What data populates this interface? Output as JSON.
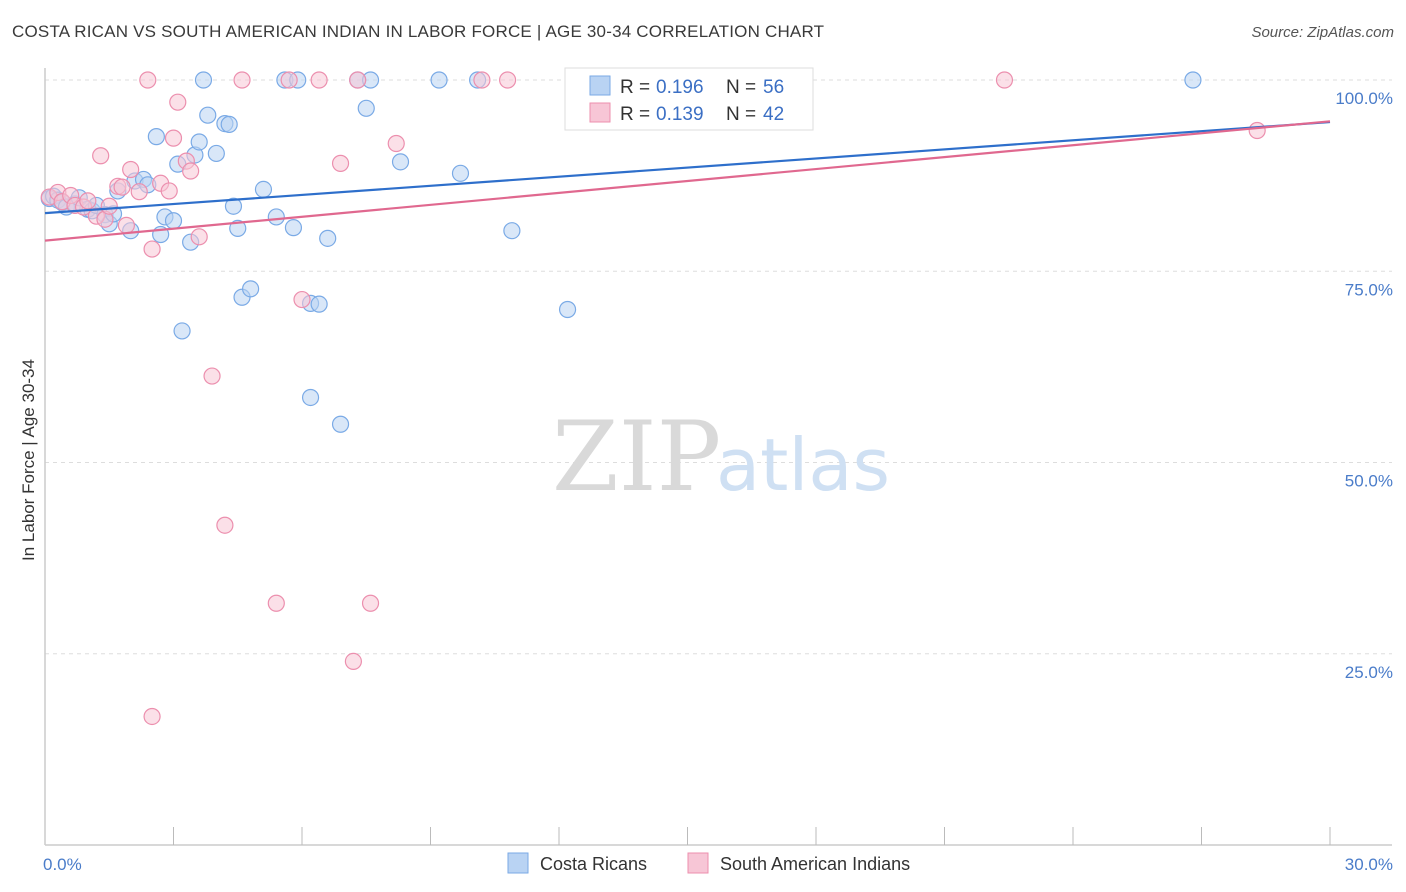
{
  "title": "COSTA RICAN VS SOUTH AMERICAN INDIAN IN LABOR FORCE | AGE 30-34 CORRELATION CHART",
  "source": "Source: ZipAtlas.com",
  "watermark": {
    "part1": "ZIP",
    "part2": "atlas"
  },
  "colors": {
    "blue": "#7aaae6",
    "blue_fill": "#b9d3f3",
    "blue_line": "#2e6fcb",
    "pink": "#ec8fae",
    "pink_fill": "#f7c6d6",
    "pink_line": "#e0688f",
    "tick": "#4a7cc9",
    "grid": "#dddddd"
  },
  "legend": {
    "r_label": "R =",
    "n_label": "N =",
    "items": [
      {
        "r": "0.196",
        "n": "56"
      },
      {
        "r": "0.139",
        "n": "42"
      }
    ]
  },
  "chart_data": {
    "type": "scatter",
    "title": "COSTA RICAN VS SOUTH AMERICAN INDIAN IN LABOR FORCE | AGE 30-34 CORRELATION CHART",
    "xlabel": "",
    "ylabel": "In Labor Force | Age 30-34",
    "xlim": [
      0,
      30
    ],
    "ylim": [
      0,
      102
    ],
    "x_tick_labels": {
      "min": "0.0%",
      "max": "30.0%"
    },
    "y_ticks": [
      {
        "value": 100,
        "label": "100.0%"
      },
      {
        "value": 75,
        "label": "75.0%"
      },
      {
        "value": 50,
        "label": "50.0%"
      },
      {
        "value": 25,
        "label": "25.0%"
      }
    ],
    "series": [
      {
        "name": "Costa Ricans",
        "color": "blue",
        "trend": {
          "x0": 0,
          "y0": 82.6,
          "x1": 30,
          "y1": 94.5
        },
        "points": [
          [
            0.1,
            84.5
          ],
          [
            0.2,
            84.8
          ],
          [
            0.3,
            84.3
          ],
          [
            0.4,
            84.0
          ],
          [
            0.5,
            83.4
          ],
          [
            0.7,
            83.8
          ],
          [
            0.8,
            84.6
          ],
          [
            1.0,
            83.1
          ],
          [
            1.1,
            82.9
          ],
          [
            1.2,
            83.6
          ],
          [
            1.4,
            82.4
          ],
          [
            1.5,
            81.2
          ],
          [
            1.6,
            82.5
          ],
          [
            1.7,
            85.5
          ],
          [
            2.0,
            80.3
          ],
          [
            2.1,
            86.8
          ],
          [
            2.3,
            87.0
          ],
          [
            2.4,
            86.3
          ],
          [
            2.6,
            92.6
          ],
          [
            2.7,
            79.8
          ],
          [
            2.8,
            82.1
          ],
          [
            3.0,
            81.6
          ],
          [
            3.1,
            89.0
          ],
          [
            3.2,
            67.2
          ],
          [
            3.4,
            78.8
          ],
          [
            3.5,
            90.2
          ],
          [
            3.6,
            91.9
          ],
          [
            3.7,
            100.0
          ],
          [
            3.8,
            95.4
          ],
          [
            4.0,
            90.4
          ],
          [
            4.2,
            94.3
          ],
          [
            4.3,
            94.2
          ],
          [
            4.4,
            83.5
          ],
          [
            4.5,
            80.6
          ],
          [
            4.6,
            71.6
          ],
          [
            4.8,
            72.7
          ],
          [
            5.1,
            85.7
          ],
          [
            5.4,
            82.1
          ],
          [
            5.6,
            100.0
          ],
          [
            5.8,
            80.7
          ],
          [
            6.2,
            70.8
          ],
          [
            6.4,
            70.7
          ],
          [
            6.6,
            79.3
          ],
          [
            6.9,
            55.0
          ],
          [
            7.3,
            100.0
          ],
          [
            7.5,
            96.3
          ],
          [
            7.6,
            100.0
          ],
          [
            8.3,
            89.3
          ],
          [
            9.2,
            100.0
          ],
          [
            9.7,
            87.8
          ],
          [
            10.1,
            100.0
          ],
          [
            10.9,
            80.3
          ],
          [
            12.2,
            70.0
          ],
          [
            26.8,
            100.0
          ],
          [
            6.2,
            58.5
          ],
          [
            5.9,
            100.0
          ]
        ]
      },
      {
        "name": "South American Indians",
        "color": "pink",
        "trend": {
          "x0": 0,
          "y0": 79.0,
          "x1": 30,
          "y1": 94.6
        },
        "points": [
          [
            0.1,
            84.7
          ],
          [
            0.3,
            85.3
          ],
          [
            0.4,
            84.1
          ],
          [
            0.6,
            84.9
          ],
          [
            0.7,
            83.6
          ],
          [
            0.9,
            83.4
          ],
          [
            1.0,
            84.2
          ],
          [
            1.2,
            82.2
          ],
          [
            1.3,
            90.1
          ],
          [
            1.4,
            81.8
          ],
          [
            1.5,
            83.5
          ],
          [
            1.7,
            86.1
          ],
          [
            1.8,
            86.0
          ],
          [
            1.9,
            81.0
          ],
          [
            2.0,
            88.3
          ],
          [
            2.2,
            85.4
          ],
          [
            2.4,
            100.0
          ],
          [
            2.5,
            77.9
          ],
          [
            2.7,
            86.5
          ],
          [
            2.9,
            85.5
          ],
          [
            3.0,
            92.4
          ],
          [
            3.1,
            97.1
          ],
          [
            3.3,
            89.4
          ],
          [
            3.4,
            88.1
          ],
          [
            3.6,
            79.5
          ],
          [
            3.9,
            61.3
          ],
          [
            4.2,
            41.8
          ],
          [
            4.6,
            100.0
          ],
          [
            5.4,
            31.6
          ],
          [
            5.7,
            100.0
          ],
          [
            6.0,
            71.3
          ],
          [
            6.4,
            100.0
          ],
          [
            6.9,
            89.1
          ],
          [
            7.2,
            24.0
          ],
          [
            7.3,
            100.0
          ],
          [
            7.6,
            31.6
          ],
          [
            8.2,
            91.7
          ],
          [
            10.2,
            100.0
          ],
          [
            10.8,
            100.0
          ],
          [
            2.5,
            16.8
          ],
          [
            22.4,
            100.0
          ],
          [
            28.3,
            93.4
          ]
        ]
      }
    ]
  }
}
